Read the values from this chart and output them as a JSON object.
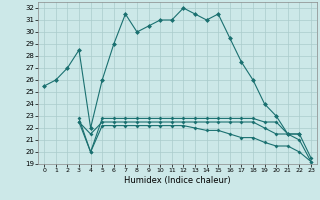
{
  "xlabel": "Humidex (Indice chaleur)",
  "background_color": "#cce8e8",
  "grid_color": "#aacccc",
  "line_color": "#1a7070",
  "xlim": [
    -0.5,
    23.5
  ],
  "ylim": [
    19,
    32.5
  ],
  "yticks": [
    19,
    20,
    21,
    22,
    23,
    24,
    25,
    26,
    27,
    28,
    29,
    30,
    31,
    32
  ],
  "xticks": [
    0,
    1,
    2,
    3,
    4,
    5,
    6,
    7,
    8,
    9,
    10,
    11,
    12,
    13,
    14,
    15,
    16,
    17,
    18,
    19,
    20,
    21,
    22,
    23
  ],
  "series1_x": [
    0,
    1,
    2,
    3,
    4,
    5,
    6,
    7,
    8,
    9,
    10,
    11,
    12,
    13,
    14,
    15,
    16,
    17,
    18,
    19,
    20,
    21,
    22
  ],
  "series1_y": [
    25.5,
    26.0,
    27.0,
    28.5,
    22.0,
    26.0,
    29.0,
    31.5,
    30.0,
    30.5,
    31.0,
    31.0,
    32.0,
    31.5,
    31.0,
    31.5,
    29.5,
    27.5,
    26.0,
    24.0,
    23.0,
    21.5,
    21.5
  ],
  "series2_x": [
    3,
    4,
    5,
    6,
    7,
    8,
    9,
    10,
    11,
    12,
    13,
    14,
    15,
    16,
    17,
    18,
    19,
    20,
    21,
    22,
    23
  ],
  "series2_y": [
    22.8,
    20.0,
    22.8,
    22.8,
    22.8,
    22.8,
    22.8,
    22.8,
    22.8,
    22.8,
    22.8,
    22.8,
    22.8,
    22.8,
    22.8,
    22.8,
    22.5,
    22.5,
    21.5,
    21.5,
    19.5
  ],
  "series3_x": [
    3,
    4,
    5,
    6,
    7,
    8,
    9,
    10,
    11,
    12,
    13,
    14,
    15,
    16,
    17,
    18,
    19,
    20,
    21,
    22,
    23
  ],
  "series3_y": [
    22.5,
    21.5,
    22.5,
    22.5,
    22.5,
    22.5,
    22.5,
    22.5,
    22.5,
    22.5,
    22.5,
    22.5,
    22.5,
    22.5,
    22.5,
    22.5,
    22.0,
    21.5,
    21.5,
    21.0,
    19.2
  ],
  "series4_x": [
    3,
    4,
    5,
    6,
    7,
    8,
    9,
    10,
    11,
    12,
    13,
    14,
    15,
    16,
    17,
    18,
    19,
    20,
    21,
    22,
    23
  ],
  "series4_y": [
    22.5,
    20.0,
    22.2,
    22.2,
    22.2,
    22.2,
    22.2,
    22.2,
    22.2,
    22.2,
    22.0,
    21.8,
    21.8,
    21.5,
    21.2,
    21.2,
    20.8,
    20.5,
    20.5,
    20.0,
    19.2
  ]
}
